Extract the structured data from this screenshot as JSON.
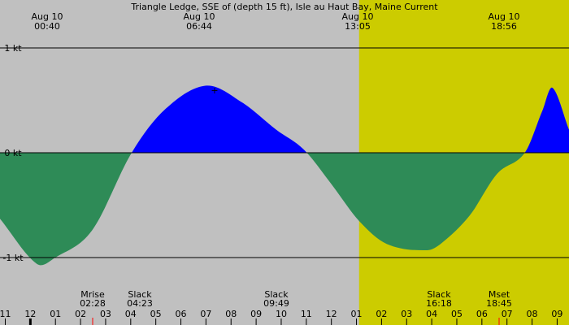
{
  "chart_data": {
    "type": "area",
    "title": "Triangle Ledge, SSE of (depth 15 ft), Isle au Haut Bay, Maine Current",
    "x_start_hour": 23.0,
    "x_end_hour": 33.3,
    "ylim": [
      -1.6,
      1.6
    ],
    "y_ticks": [
      {
        "value": 1,
        "label": "1 kt"
      },
      {
        "value": 0,
        "label": "0 kt"
      },
      {
        "value": -1,
        "label": "-1 kt"
      }
    ],
    "daylight": {
      "start_hour": 29.5,
      "end_hour": 44.7
    },
    "colors": {
      "background": "#c0c0c0",
      "daylight": "#cccc00",
      "flood": "#0000ff",
      "ebb": "#2e8b57",
      "moon_tick": "#ff0000"
    },
    "series": [
      {
        "name": "",
        "x": [
          23.0,
          23.667,
          24.0,
          24.667,
          25.383,
          26.0,
          26.733,
          27.383,
          28.0,
          28.5,
          29.0,
          29.5,
          30.0,
          30.733,
          31.0,
          31.5,
          32.0,
          32.5,
          32.817,
          33.0,
          33.3
        ],
        "y": [
          -0.63,
          -1.06,
          -1.0,
          -0.74,
          0.0,
          0.42,
          0.64,
          0.48,
          0.22,
          0.03,
          -0.3,
          -0.65,
          -0.87,
          -0.93,
          -0.86,
          -0.6,
          -0.2,
          0.0,
          0.4,
          0.62,
          0.22
        ]
      }
    ],
    "extremes": [
      {
        "date": "Aug 10",
        "time": "00:40"
      },
      {
        "date": "Aug 10",
        "time": "06:44"
      },
      {
        "date": "Aug 10",
        "time": "13:05"
      },
      {
        "date": "Aug 10",
        "time": "18:56"
      }
    ],
    "events": [
      {
        "label": "Mrise",
        "time": "02:28"
      },
      {
        "label": "Slack",
        "time": "04:23"
      },
      {
        "label": "Slack",
        "time": "09:49"
      },
      {
        "label": "Slack",
        "time": "16:18"
      },
      {
        "label": "Mset",
        "time": "18:45"
      }
    ],
    "x_tick_labels": [
      "11",
      "12",
      "01",
      "02",
      "03",
      "04",
      "05",
      "06",
      "07",
      "08",
      "09",
      "10",
      "11",
      "12",
      "01",
      "02",
      "03",
      "04",
      "05",
      "06",
      "07",
      "08",
      "09"
    ]
  }
}
